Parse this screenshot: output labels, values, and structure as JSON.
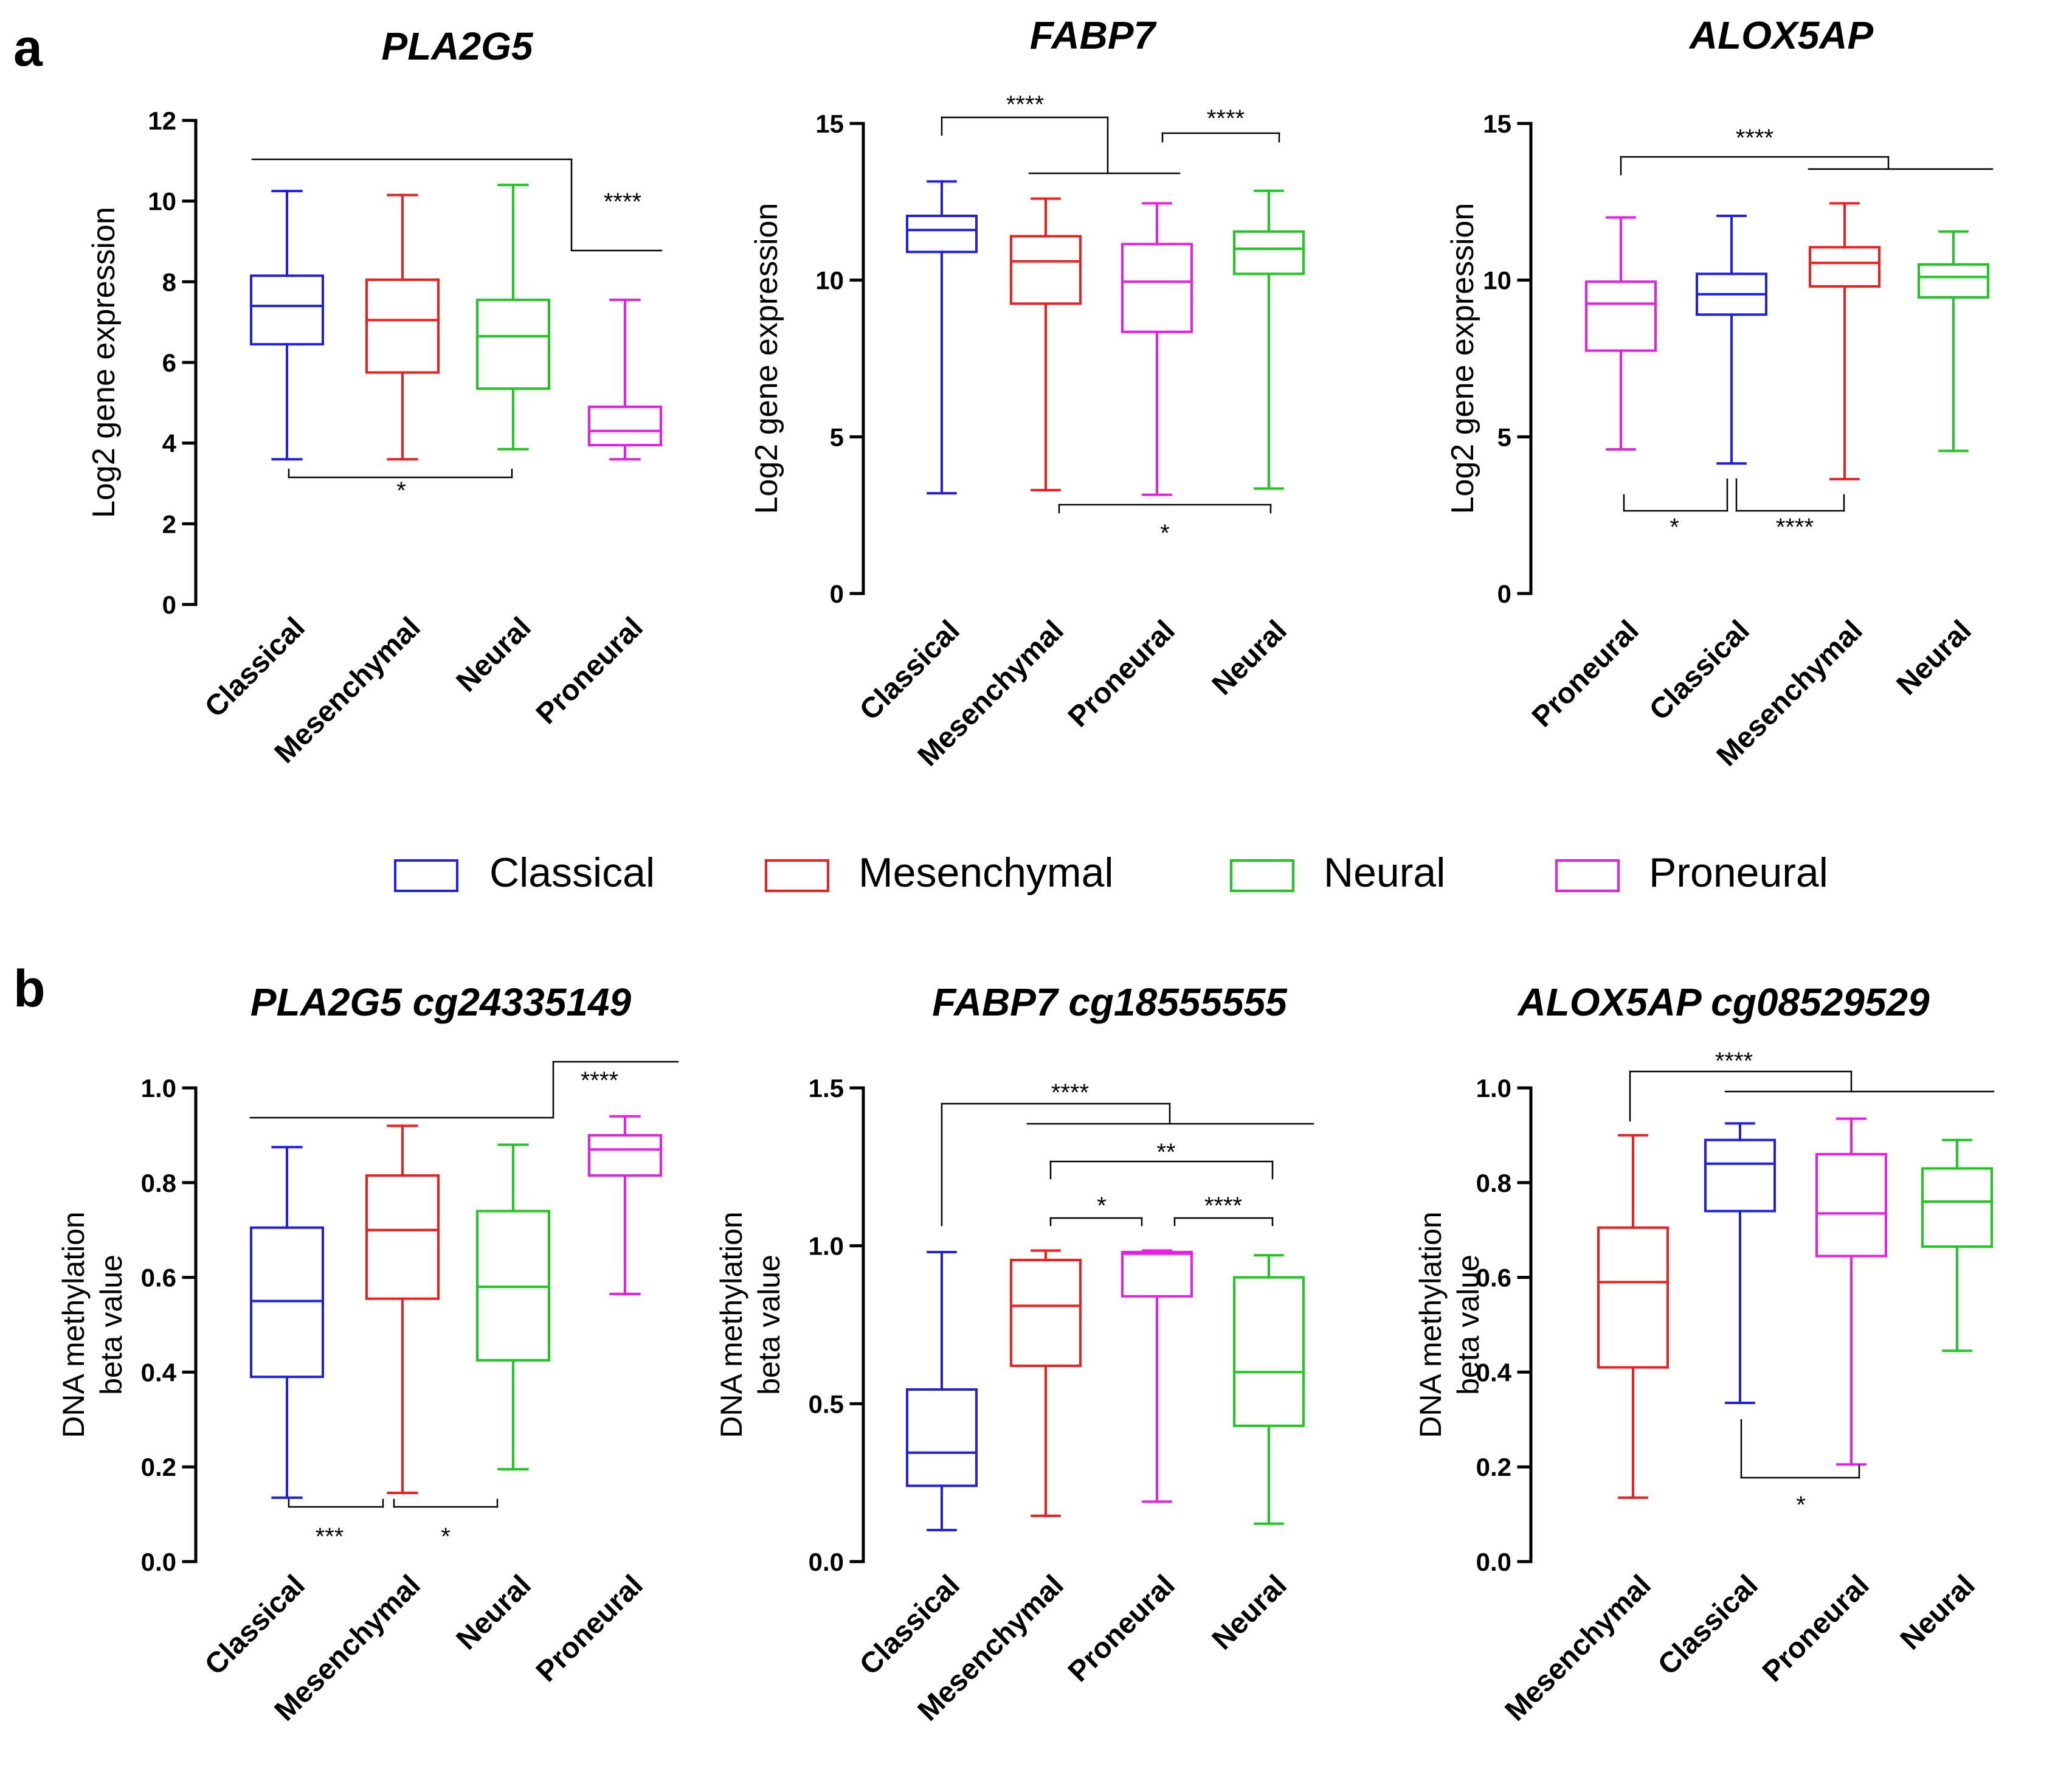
{
  "panel_labels": [
    "a",
    "b"
  ],
  "colors": {
    "Classical": "#1f1fe6",
    "Mesenchymal": "#f01e1e",
    "Neural": "#1ec81e",
    "Proneural": "#e61ee6",
    "axis": "#000000"
  },
  "legend": {
    "entries": [
      "Classical",
      "Mesenchymal",
      "Neural",
      "Proneural"
    ],
    "placement": "center, between rows"
  },
  "chart_data": [
    {
      "id": "a1",
      "panel": "a",
      "type": "box",
      "title": "PLA2G5",
      "ylabel": "Log2 gene expression",
      "ylim": [
        0,
        12
      ],
      "yticks": [
        "0",
        "2",
        "4",
        "6",
        "8",
        "10",
        "12"
      ],
      "categories": [
        "Classical",
        "Mesenchymal",
        "Neural",
        "Proneural"
      ],
      "boxes": [
        {
          "group": "Classical",
          "min": 3.6,
          "q1": 6.45,
          "median": 7.4,
          "q3": 8.15,
          "max": 10.25
        },
        {
          "group": "Mesenchymal",
          "min": 3.6,
          "q1": 5.75,
          "median": 7.05,
          "q3": 8.05,
          "max": 10.15
        },
        {
          "group": "Neural",
          "min": 3.85,
          "q1": 5.35,
          "median": 6.65,
          "q3": 7.55,
          "max": 10.4
        },
        {
          "group": "Proneural",
          "min": 3.6,
          "q1": 3.95,
          "median": 4.3,
          "q3": 4.9,
          "max": 7.55
        }
      ],
      "significance": [
        {
          "label": "****",
          "between": "Classical, Mesenchymal, Neural vs Proneural"
        },
        {
          "label": "*",
          "between": "Classical vs Neural"
        }
      ]
    },
    {
      "id": "a2",
      "panel": "a",
      "type": "box",
      "title": "FABP7",
      "ylabel": "Log2 gene expression",
      "ylim": [
        0,
        15
      ],
      "yticks": [
        "0",
        "5",
        "10",
        "15"
      ],
      "categories": [
        "Classical",
        "Mesenchymal",
        "Proneural",
        "Neural"
      ],
      "boxes": [
        {
          "group": "Classical",
          "min": 3.2,
          "q1": 10.9,
          "median": 11.6,
          "q3": 12.05,
          "max": 13.15
        },
        {
          "group": "Mesenchymal",
          "min": 3.3,
          "q1": 9.25,
          "median": 10.6,
          "q3": 11.4,
          "max": 12.6
        },
        {
          "group": "Proneural",
          "min": 3.15,
          "q1": 8.35,
          "median": 9.95,
          "q3": 11.15,
          "max": 12.45
        },
        {
          "group": "Neural",
          "min": 3.35,
          "q1": 10.2,
          "median": 11.0,
          "q3": 11.55,
          "max": 12.85
        }
      ],
      "significance": [
        {
          "label": "****",
          "between": "Classical vs Mesenchymal, Proneural"
        },
        {
          "label": "****",
          "between": "Proneural vs Neural"
        },
        {
          "label": "*",
          "between": "Mesenchymal vs Neural"
        }
      ]
    },
    {
      "id": "a3",
      "panel": "a",
      "type": "box",
      "title": "ALOX5AP",
      "ylabel": "Log2 gene expression",
      "ylim": [
        0,
        15
      ],
      "yticks": [
        "0",
        "5",
        "10",
        "15"
      ],
      "categories": [
        "Proneural",
        "Classical",
        "Mesenchymal",
        "Neural"
      ],
      "boxes": [
        {
          "group": "Proneural",
          "min": 4.6,
          "q1": 7.75,
          "median": 9.25,
          "q3": 9.95,
          "max": 12.0
        },
        {
          "group": "Classical",
          "min": 4.15,
          "q1": 8.9,
          "median": 9.55,
          "q3": 10.2,
          "max": 12.05
        },
        {
          "group": "Mesenchymal",
          "min": 3.65,
          "q1": 9.8,
          "median": 10.55,
          "q3": 11.05,
          "max": 12.45
        },
        {
          "group": "Neural",
          "min": 4.55,
          "q1": 9.45,
          "median": 10.1,
          "q3": 10.5,
          "max": 11.55
        }
      ],
      "significance": [
        {
          "label": "****",
          "between": "Proneural vs Mesenchymal, Neural"
        },
        {
          "label": "*",
          "between": "Proneural vs Classical"
        },
        {
          "label": "****",
          "between": "Classical vs Mesenchymal"
        }
      ]
    },
    {
      "id": "b1",
      "panel": "b",
      "type": "box",
      "title": "PLA2G5 cg24335149",
      "ylabel": "DNA methylation beta value",
      "ylim": [
        0,
        1.0
      ],
      "yticks": [
        "0.0",
        "0.2",
        "0.4",
        "0.6",
        "0.8",
        "1.0"
      ],
      "categories": [
        "Classical",
        "Mesenchymal",
        "Neural",
        "Proneural"
      ],
      "boxes": [
        {
          "group": "Classical",
          "min": 0.135,
          "q1": 0.39,
          "median": 0.55,
          "q3": 0.705,
          "max": 0.875
        },
        {
          "group": "Mesenchymal",
          "min": 0.145,
          "q1": 0.555,
          "median": 0.7,
          "q3": 0.815,
          "max": 0.92
        },
        {
          "group": "Neural",
          "min": 0.195,
          "q1": 0.425,
          "median": 0.58,
          "q3": 0.74,
          "max": 0.88
        },
        {
          "group": "Proneural",
          "min": 0.565,
          "q1": 0.815,
          "median": 0.87,
          "q3": 0.9,
          "max": 0.94
        }
      ],
      "significance": [
        {
          "label": "****",
          "between": "Classical, Mesenchymal, Neural vs Proneural"
        },
        {
          "label": "***",
          "between": "Classical vs Mesenchymal"
        },
        {
          "label": "*",
          "between": "Mesenchymal vs Neural"
        }
      ]
    },
    {
      "id": "b2",
      "panel": "b",
      "type": "box",
      "title": "FABP7 cg18555555",
      "ylabel": "DNA methylation beta value",
      "ylim": [
        0,
        1.5
      ],
      "yticks": [
        "0.0",
        "0.5",
        "1.0",
        "1.5"
      ],
      "categories": [
        "Classical",
        "Mesenchymal",
        "Proneural",
        "Neural"
      ],
      "boxes": [
        {
          "group": "Classical",
          "min": 0.1,
          "q1": 0.24,
          "median": 0.345,
          "q3": 0.545,
          "max": 0.98
        },
        {
          "group": "Mesenchymal",
          "min": 0.145,
          "q1": 0.62,
          "median": 0.81,
          "q3": 0.955,
          "max": 0.985
        },
        {
          "group": "Proneural",
          "min": 0.19,
          "q1": 0.84,
          "median": 0.975,
          "q3": 0.98,
          "max": 0.985
        },
        {
          "group": "Neural",
          "min": 0.12,
          "q1": 0.43,
          "median": 0.6,
          "q3": 0.9,
          "max": 0.97
        }
      ],
      "significance": [
        {
          "label": "****",
          "between": "Classical vs Mesenchymal, Proneural, Neural"
        },
        {
          "label": "**",
          "between": "Mesenchymal vs Neural"
        },
        {
          "label": "*",
          "between": "Mesenchymal vs Proneural"
        },
        {
          "label": "****",
          "between": "Proneural vs Neural"
        }
      ]
    },
    {
      "id": "b3",
      "panel": "b",
      "type": "box",
      "title": "ALOX5AP cg08529529",
      "ylabel": "DNA methylation beta value",
      "ylim": [
        0,
        1.0
      ],
      "yticks": [
        "0.0",
        "0.2",
        "0.4",
        "0.6",
        "0.8",
        "1.0"
      ],
      "categories": [
        "Mesenchymal",
        "Classical",
        "Proneural",
        "Neural"
      ],
      "boxes": [
        {
          "group": "Mesenchymal",
          "min": 0.135,
          "q1": 0.41,
          "median": 0.59,
          "q3": 0.705,
          "max": 0.9
        },
        {
          "group": "Classical",
          "min": 0.335,
          "q1": 0.74,
          "median": 0.84,
          "q3": 0.89,
          "max": 0.925
        },
        {
          "group": "Proneural",
          "min": 0.205,
          "q1": 0.645,
          "median": 0.735,
          "q3": 0.86,
          "max": 0.935
        },
        {
          "group": "Neural",
          "min": 0.445,
          "q1": 0.665,
          "median": 0.76,
          "q3": 0.83,
          "max": 0.89
        }
      ],
      "significance": [
        {
          "label": "****",
          "between": "Mesenchymal vs Classical, Proneural, Neural"
        },
        {
          "label": "*",
          "between": "Classical vs Proneural"
        }
      ]
    }
  ]
}
